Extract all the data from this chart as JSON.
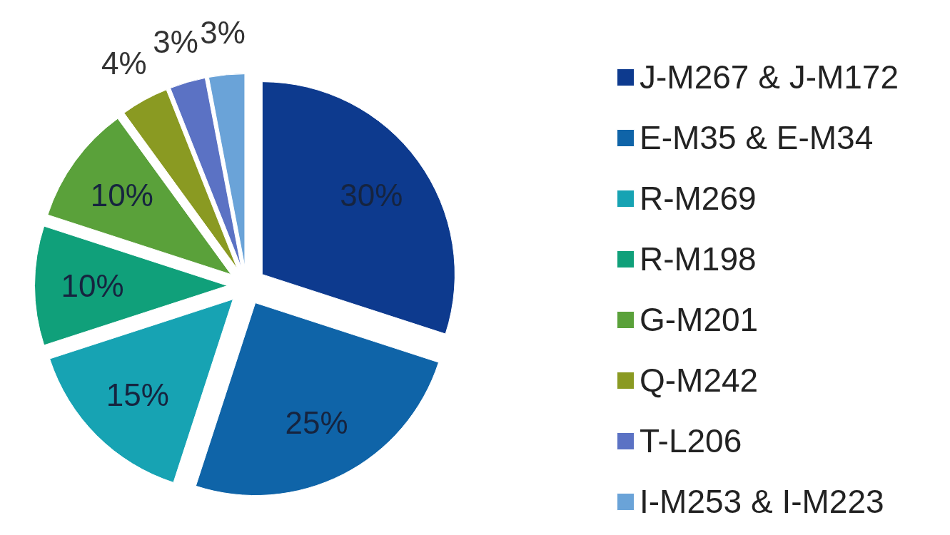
{
  "chart_data": {
    "type": "pie",
    "categories": [
      "J-M267 & J-M172",
      "E-M35 & E-M34",
      "R-M269",
      "R-M198",
      "G-M201",
      "Q-M242",
      "T-L206",
      "I-M253 & I-M223"
    ],
    "values": [
      30,
      25,
      15,
      10,
      10,
      4,
      3,
      3
    ],
    "colors": [
      "#0d3a8e",
      "#0f64a8",
      "#17a3b3",
      "#10a07a",
      "#5aa13a",
      "#8a9a22",
      "#5b72c4",
      "#6aa3d8"
    ],
    "value_labels": [
      "30%",
      "25%",
      "15%",
      "10%",
      "10%",
      "4%",
      "3%",
      "3%"
    ],
    "legend": "right"
  }
}
